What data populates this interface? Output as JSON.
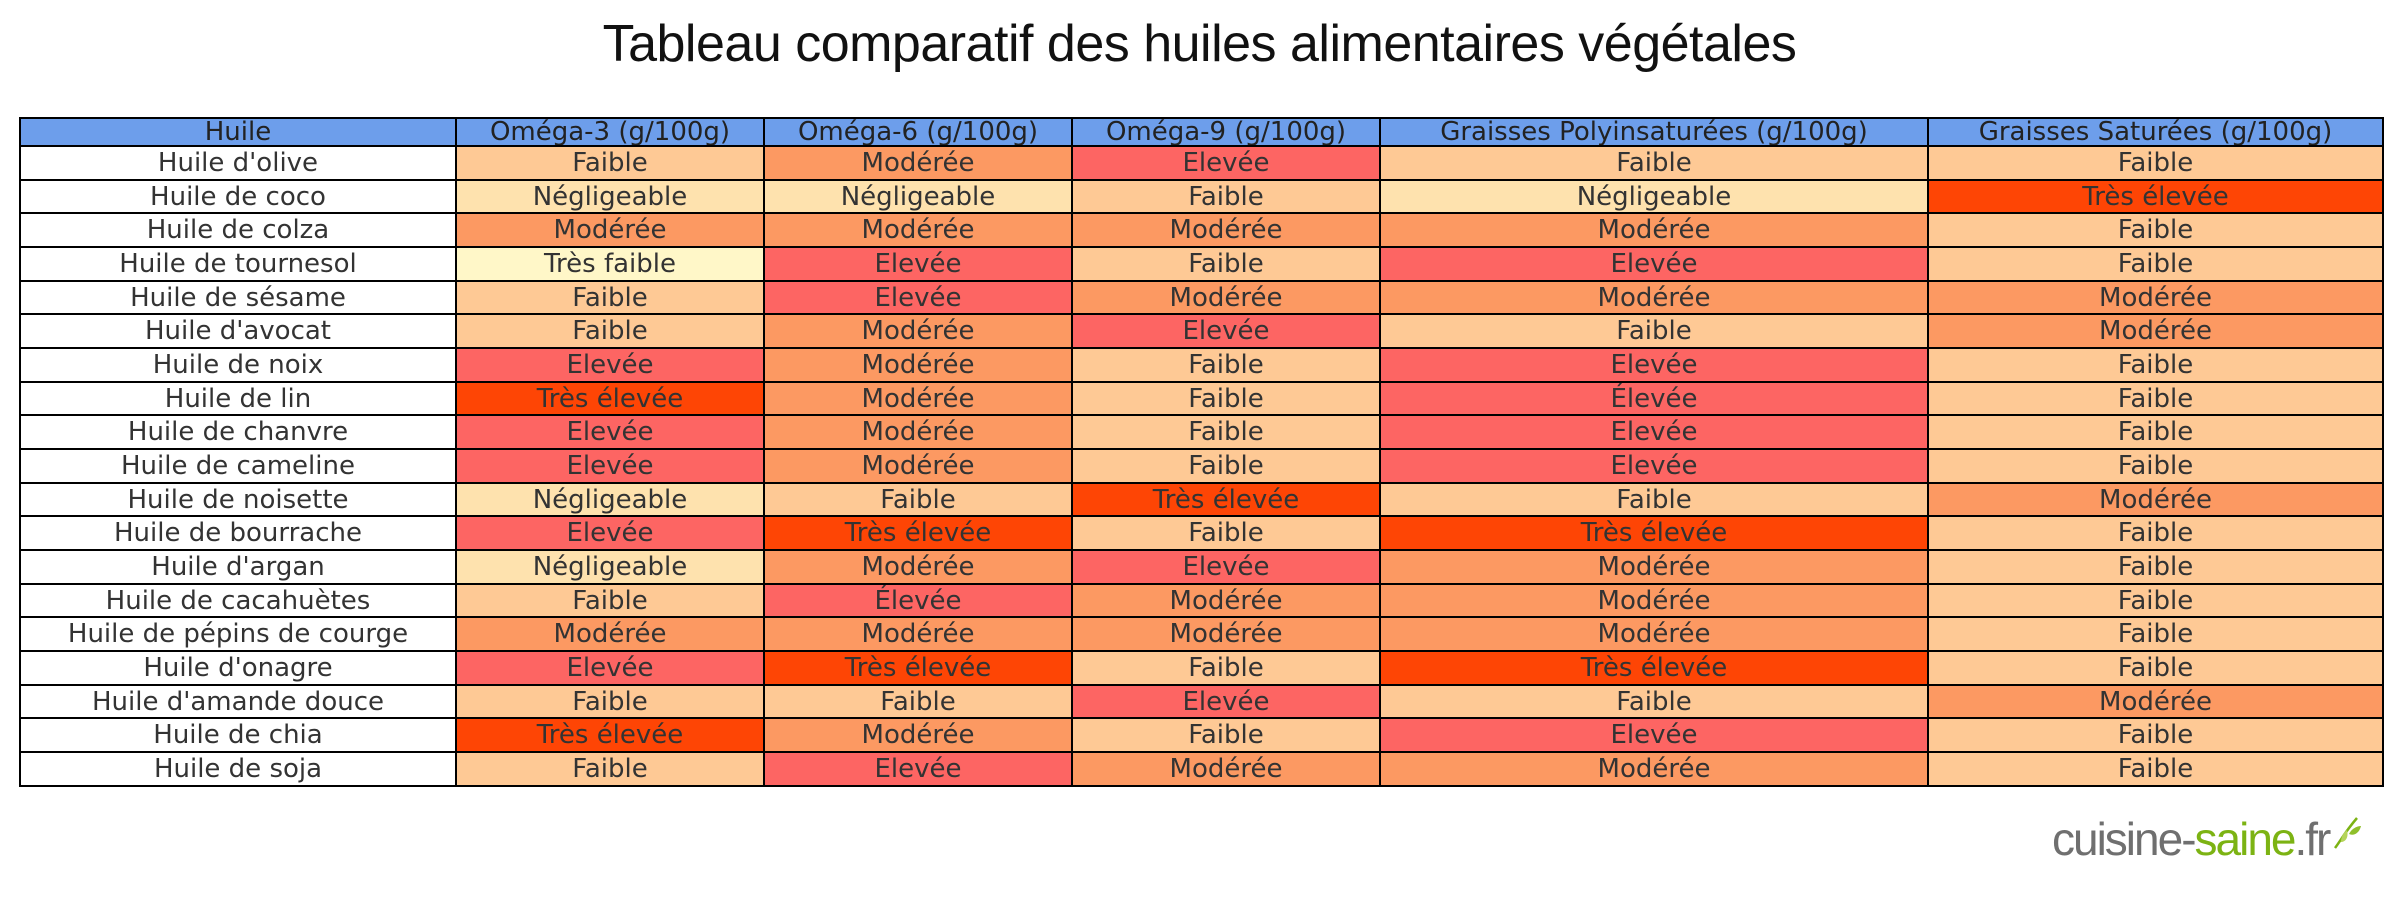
{
  "title": "Tableau comparatif des huiles alimentaires végétales",
  "logo": {
    "part1": "cuisine-",
    "part2": "saine",
    "part3": ".fr"
  },
  "colors": {
    "header": "#6d9eeb",
    "Négligeable": "#fee2ae",
    "Très faible": "#fff7c8",
    "Faible": "#fec995",
    "Modérée": "#fc9962",
    "Elevée": "#fd6563",
    "Élevée": "#fd6563",
    "Très élevée": "#fe4505"
  },
  "chart_data": {
    "type": "table",
    "columns": [
      "Huile",
      "Oméga-3 (g/100g)",
      "Oméga-6 (g/100g)",
      "Oméga-9 (g/100g)",
      "Graisses Polyinsaturées (g/100g)",
      "Graisses Saturées (g/100g)"
    ],
    "rows": [
      [
        "Huile d'olive",
        "Faible",
        "Modérée",
        "Elevée",
        "Faible",
        "Faible"
      ],
      [
        "Huile de coco",
        "Négligeable",
        "Négligeable",
        "Faible",
        "Négligeable",
        "Très élevée"
      ],
      [
        "Huile de colza",
        "Modérée",
        "Modérée",
        "Modérée",
        "Modérée",
        "Faible"
      ],
      [
        "Huile de tournesol",
        "Très faible",
        "Elevée",
        "Faible",
        "Elevée",
        "Faible"
      ],
      [
        "Huile de sésame",
        "Faible",
        "Elevée",
        "Modérée",
        "Modérée",
        "Modérée"
      ],
      [
        "Huile d'avocat",
        "Faible",
        "Modérée",
        "Elevée",
        "Faible",
        "Modérée"
      ],
      [
        "Huile de noix",
        "Elevée",
        "Modérée",
        "Faible",
        "Elevée",
        "Faible"
      ],
      [
        "Huile de lin",
        "Très élevée",
        "Modérée",
        "Faible",
        "Élevée",
        "Faible"
      ],
      [
        "Huile de chanvre",
        "Elevée",
        "Modérée",
        "Faible",
        "Elevée",
        "Faible"
      ],
      [
        "Huile de cameline",
        "Elevée",
        "Modérée",
        "Faible",
        "Elevée",
        "Faible"
      ],
      [
        "Huile de noisette",
        "Négligeable",
        "Faible",
        "Très élevée",
        "Faible",
        "Modérée"
      ],
      [
        "Huile de bourrache",
        "Elevée",
        "Très élevée",
        "Faible",
        "Très élevée",
        "Faible"
      ],
      [
        "Huile d'argan",
        "Négligeable",
        "Modérée",
        "Elevée",
        "Modérée",
        "Faible"
      ],
      [
        "Huile de cacahuètes",
        "Faible",
        "Élevée",
        "Modérée",
        "Modérée",
        "Faible"
      ],
      [
        "Huile de pépins de courge",
        "Modérée",
        "Modérée",
        "Modérée",
        "Modérée",
        "Faible"
      ],
      [
        "Huile d'onagre",
        "Elevée",
        "Très élevée",
        "Faible",
        "Très élevée",
        "Faible"
      ],
      [
        "Huile d'amande douce",
        "Faible",
        "Faible",
        "Elevée",
        "Faible",
        "Modérée"
      ],
      [
        "Huile de chia",
        "Très élevée",
        "Modérée",
        "Faible",
        "Elevée",
        "Faible"
      ],
      [
        "Huile de soja",
        "Faible",
        "Elevée",
        "Modérée",
        "Modérée",
        "Faible"
      ]
    ]
  }
}
